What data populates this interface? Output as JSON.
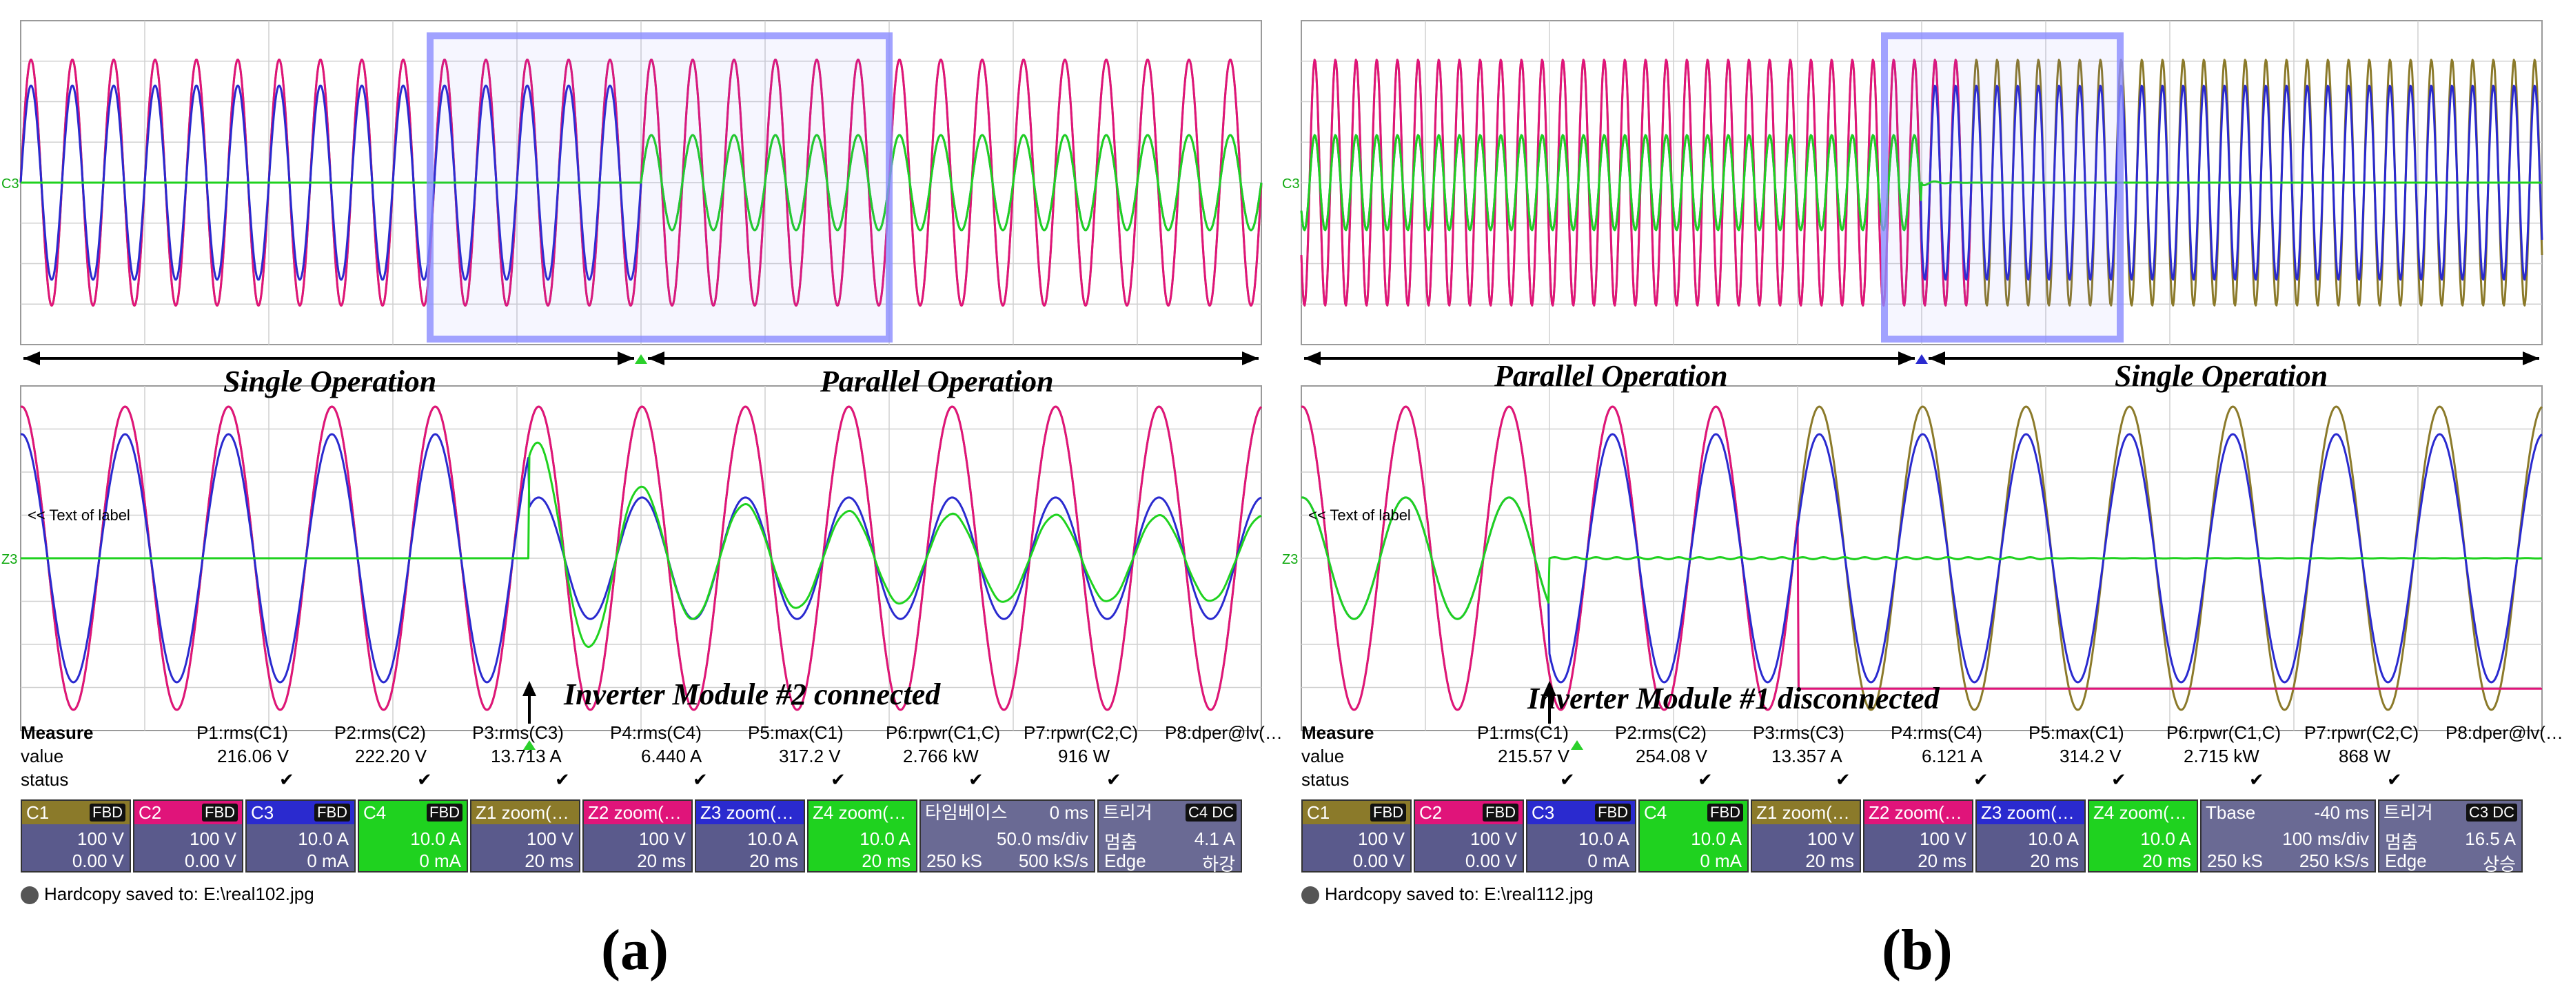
{
  "panels": [
    {
      "id": "a",
      "caption": "(a)",
      "left_label": "Single Operation",
      "right_label": "Parallel Operation",
      "event_label": "Inverter Module #2 connected",
      "cursor_text": "<< Text of label",
      "measure": {
        "title": "Measure",
        "value_label": "value",
        "status_label": "status",
        "params": [
          "P1:rms(C1)",
          "P2:rms(C2)",
          "P3:rms(C3)",
          "P4:rms(C4)",
          "P5:max(C1)",
          "P6:rpwr(C1,C)",
          "P7:rpwr(C2,C)",
          "P8:dper@lv(…"
        ],
        "values": [
          "216.06 V",
          "222.20 V",
          "13.713 A",
          "6.440 A",
          "317.2 V",
          "2.766 kW",
          "916 W",
          ""
        ]
      },
      "tiles": [
        {
          "name": "C1",
          "badge": "FBD",
          "v1": "100 V",
          "v2": "0.00 V",
          "color": "#8b7a2a"
        },
        {
          "name": "C2",
          "badge": "FBD",
          "v1": "100 V",
          "v2": "0.00 V",
          "color": "#e0147a"
        },
        {
          "name": "C3",
          "badge": "FBD",
          "v1": "10.0 A",
          "v2": "0 mA",
          "color": "#2a2acf"
        },
        {
          "name": "C4",
          "badge": "FBD",
          "v1": "10.0 A",
          "v2": "0 mA",
          "color": "#1fd21f"
        },
        {
          "name": "Z1 zoom(…",
          "badge": "",
          "v1": "100 V",
          "v2": "20 ms",
          "color": "#8b7a2a"
        },
        {
          "name": "Z2 zoom(…",
          "badge": "",
          "v1": "100 V",
          "v2": "20 ms",
          "color": "#e0147a"
        },
        {
          "name": "Z3 zoom(…",
          "badge": "",
          "v1": "10.0 A",
          "v2": "20 ms",
          "color": "#2a2acf"
        },
        {
          "name": "Z4 zoom(…",
          "badge": "",
          "v1": "10.0 A",
          "v2": "20 ms",
          "color": "#1fd21f"
        }
      ],
      "timebase": {
        "title": "타임베이스",
        "offset": "0 ms",
        "l1": "",
        "v1": "50.0 ms/div",
        "l2": "250 kS",
        "v2": "500 kS/s"
      },
      "trigger": {
        "title": "트리거",
        "badge": "C4 DC",
        "l1": "멈춤",
        "v1": "4.1 A",
        "l2": "Edge",
        "v2": "하강"
      },
      "hardcopy": "Hardcopy saved to: E:\\real102.jpg"
    },
    {
      "id": "b",
      "caption": "(b)",
      "left_label": "Parallel Operation",
      "right_label": "Single Operation",
      "event_label": "Inverter Module #1 disconnected",
      "cursor_text": "<< Text of label",
      "measure": {
        "title": "Measure",
        "value_label": "value",
        "status_label": "status",
        "params": [
          "P1:rms(C1)",
          "P2:rms(C2)",
          "P3:rms(C3)",
          "P4:rms(C4)",
          "P5:max(C1)",
          "P6:rpwr(C1,C)",
          "P7:rpwr(C2,C)",
          "P8:dper@lv(…"
        ],
        "values": [
          "215.57 V",
          "254.08 V",
          "13.357 A",
          "6.121 A",
          "314.2 V",
          "2.715 kW",
          "868 W",
          ""
        ]
      },
      "tiles": [
        {
          "name": "C1",
          "badge": "FBD",
          "v1": "100 V",
          "v2": "0.00 V",
          "color": "#8b7a2a"
        },
        {
          "name": "C2",
          "badge": "FBD",
          "v1": "100 V",
          "v2": "0.00 V",
          "color": "#e0147a"
        },
        {
          "name": "C3",
          "badge": "FBD",
          "v1": "10.0 A",
          "v2": "0 mA",
          "color": "#2a2acf"
        },
        {
          "name": "C4",
          "badge": "FBD",
          "v1": "10.0 A",
          "v2": "0 mA",
          "color": "#1fd21f"
        },
        {
          "name": "Z1 zoom(…",
          "badge": "",
          "v1": "100 V",
          "v2": "20 ms",
          "color": "#8b7a2a"
        },
        {
          "name": "Z2 zoom(…",
          "badge": "",
          "v1": "100 V",
          "v2": "20 ms",
          "color": "#e0147a"
        },
        {
          "name": "Z3 zoom(…",
          "badge": "",
          "v1": "10.0 A",
          "v2": "20 ms",
          "color": "#2a2acf"
        },
        {
          "name": "Z4 zoom(…",
          "badge": "",
          "v1": "10.0 A",
          "v2": "20 ms",
          "color": "#1fd21f"
        }
      ],
      "timebase": {
        "title": "Tbase",
        "offset": "-40 ms",
        "l1": "",
        "v1": "100 ms/div",
        "l2": "250 kS",
        "v2": "250 kS/s"
      },
      "trigger": {
        "title": "트리거",
        "badge": "C3 DC",
        "l1": "멈춤",
        "v1": "16.5 A",
        "l2": "Edge",
        "v2": "상승"
      },
      "hardcopy": "Hardcopy saved to: E:\\real112.jpg"
    }
  ],
  "chart_data": [
    {
      "type": "line",
      "title": "(a)",
      "view": "overview",
      "x_unit": "ms",
      "x": [
        0,
        500
      ],
      "xlim": [
        0,
        500
      ],
      "ylim_voltage": [
        -400,
        400
      ],
      "ylim_current": [
        -40,
        40
      ],
      "event_time_ms": 250,
      "series": [
        {
          "name": "C1",
          "quantity": "voltage",
          "unit": "V",
          "rms": 216.06,
          "peak": 317.2,
          "freq_hz": 60,
          "color": "#8b7a2a"
        },
        {
          "name": "C2",
          "quantity": "voltage",
          "unit": "V",
          "rms": 222.2,
          "peak": 314,
          "freq_hz": 60,
          "color": "#e0147a"
        },
        {
          "name": "C3",
          "quantity": "current",
          "unit": "A",
          "rms": 13.713,
          "peak_before": 19.4,
          "peak_after": 9.5,
          "freq_hz": 60,
          "color": "#2a2acf"
        },
        {
          "name": "C4",
          "quantity": "current",
          "unit": "A",
          "rms": 6.44,
          "peak_before": 0,
          "peak_after": 9.5,
          "freq_hz": 60,
          "color": "#1fd21f"
        }
      ],
      "legend": [
        "Single Operation",
        "Parallel Operation"
      ]
    },
    {
      "type": "line",
      "title": "(a)",
      "view": "zoom",
      "x_unit": "ms",
      "x": [
        0,
        200
      ],
      "xlim": [
        0,
        200
      ],
      "event_time_ms": 82,
      "series": [
        {
          "name": "Z1",
          "quantity": "voltage",
          "unit": "V",
          "peak": 317.2,
          "freq_hz": 60,
          "color": "#8b7a2a"
        },
        {
          "name": "Z2",
          "quantity": "voltage",
          "unit": "V",
          "peak": 314,
          "freq_hz": 60,
          "color": "#e0147a"
        },
        {
          "name": "Z3",
          "quantity": "current",
          "unit": "A",
          "peak_before": 19.4,
          "peak_after": 9.5,
          "freq_hz": 60,
          "color": "#2a2acf"
        },
        {
          "name": "Z4",
          "quantity": "current",
          "unit": "A",
          "peak_before": 0,
          "peak_after": 9.5,
          "freq_hz": 60,
          "color": "#1fd21f"
        }
      ],
      "annotations": [
        "Inverter Module #2 connected"
      ]
    },
    {
      "type": "line",
      "title": "(b)",
      "view": "overview",
      "x_unit": "ms",
      "x": [
        -540,
        460
      ],
      "xlim": [
        -540,
        460
      ],
      "ylim_voltage": [
        -400,
        400
      ],
      "ylim_current": [
        -40,
        40
      ],
      "event_time_ms": -40,
      "series": [
        {
          "name": "C1",
          "quantity": "voltage",
          "unit": "V",
          "rms": 215.57,
          "peak": 314.2,
          "freq_hz": 60,
          "color": "#8b7a2a"
        },
        {
          "name": "C2",
          "quantity": "voltage",
          "unit": "V",
          "rms": 254.08,
          "peak": 314,
          "freq_hz": 60,
          "color": "#e0147a"
        },
        {
          "name": "C3",
          "quantity": "current",
          "unit": "A",
          "rms": 13.357,
          "peak_before": 9.5,
          "peak_after": 19.4,
          "freq_hz": 60,
          "color": "#2a2acf"
        },
        {
          "name": "C4",
          "quantity": "current",
          "unit": "A",
          "rms": 6.121,
          "peak_before": 9.5,
          "peak_after": 0,
          "freq_hz": 60,
          "color": "#1fd21f"
        }
      ],
      "legend": [
        "Parallel Operation",
        "Single Operation"
      ]
    },
    {
      "type": "line",
      "title": "(b)",
      "view": "zoom",
      "x_unit": "ms",
      "x": [
        0,
        200
      ],
      "xlim": [
        0,
        200
      ],
      "event_time_ms": 40,
      "series": [
        {
          "name": "Z1",
          "quantity": "voltage",
          "unit": "V",
          "peak": 314.2,
          "freq_hz": 60,
          "color": "#8b7a2a"
        },
        {
          "name": "Z2",
          "quantity": "voltage",
          "unit": "V",
          "peak": 314,
          "freq_hz": 60,
          "color": "#e0147a"
        },
        {
          "name": "Z3",
          "quantity": "current",
          "unit": "A",
          "peak_before": 9.5,
          "peak_after": 19.4,
          "freq_hz": 60,
          "color": "#2a2acf"
        },
        {
          "name": "Z4",
          "quantity": "current",
          "unit": "A",
          "peak_before": 9.5,
          "peak_after": 0,
          "freq_hz": 60,
          "color": "#1fd21f"
        }
      ],
      "annotations": [
        "Inverter Module #1 disconnected"
      ]
    }
  ]
}
